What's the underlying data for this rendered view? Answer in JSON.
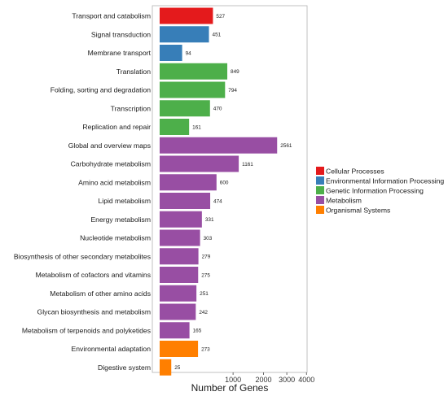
{
  "chart_data": {
    "type": "bar",
    "orientation": "horizontal",
    "x_scale": "sqrt",
    "xlabel": "Number of Genes",
    "xticks": [
      1000,
      2000,
      3000,
      4000
    ],
    "xlim": [
      0,
      4000
    ],
    "grid": false,
    "legend_placement": "right",
    "categories": [
      "Transport and catabolism",
      "Signal transduction",
      "Membrane transport",
      "Translation",
      "Folding, sorting and degradation",
      "Transcription",
      "Replication and repair",
      "Global and overview maps",
      "Carbohydrate metabolism",
      "Amino acid metabolism",
      "Lipid metabolism",
      "Energy metabolism",
      "Nucleotide metabolism",
      "Biosynthesis of other secondary metabolites",
      "Metabolism of cofactors and vitamins",
      "Metabolism of other amino acids",
      "Glycan biosynthesis and metabolism",
      "Metabolism of terpenoids and polyketides",
      "Environmental adaptation",
      "Digestive system"
    ],
    "values": [
      527,
      451,
      94,
      849,
      794,
      470,
      161,
      2561,
      1161,
      600,
      474,
      331,
      303,
      279,
      275,
      251,
      242,
      165,
      273,
      25
    ],
    "groups": [
      0,
      1,
      1,
      2,
      2,
      2,
      2,
      3,
      3,
      3,
      3,
      3,
      3,
      3,
      3,
      3,
      3,
      3,
      4,
      4
    ],
    "legend": [
      {
        "name": "Cellular Processes",
        "color": "#e41a1c"
      },
      {
        "name": "Environmental Information Processing",
        "color": "#377eb8"
      },
      {
        "name": "Genetic Information Processing",
        "color": "#4daf4a"
      },
      {
        "name": "Metabolism",
        "color": "#984ea3"
      },
      {
        "name": "Organismal Systems",
        "color": "#ff7f00"
      }
    ]
  }
}
